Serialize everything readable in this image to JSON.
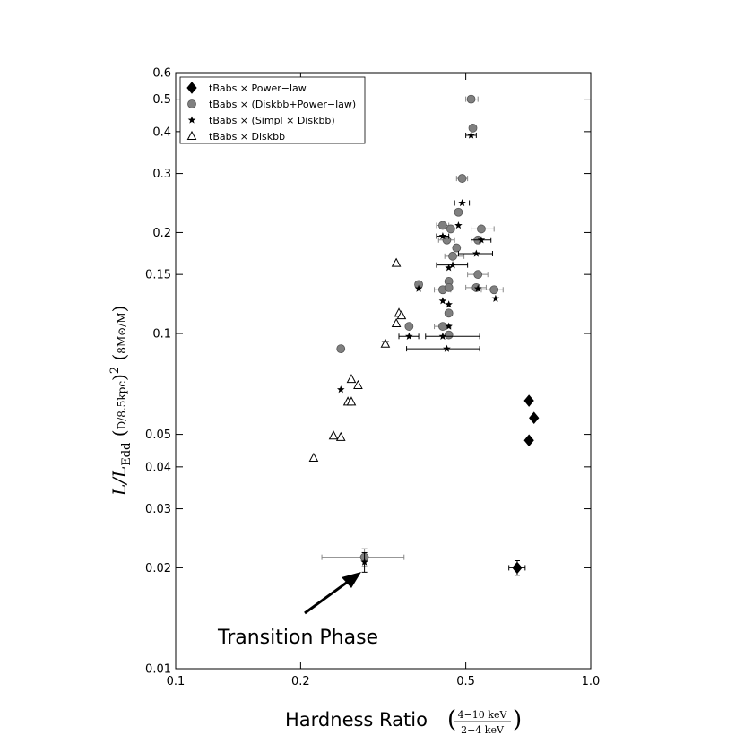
{
  "chart_data": {
    "type": "scatter",
    "title": "",
    "xlabel": "Hardness Ratio",
    "xlabel_fraction": {
      "numerator": "4−10 keV",
      "denominator": "2−4 keV"
    },
    "ylabel": "L/L_Edd (D/8.5kpc)^2 (8M⊙/M)",
    "x_scale": "log",
    "y_scale": "log",
    "xlim": [
      0.1,
      1.0
    ],
    "ylim": [
      0.01,
      0.6
    ],
    "x_ticks": [
      {
        "value": 0.1,
        "label": "0.1"
      },
      {
        "value": 0.2,
        "label": "0.2"
      },
      {
        "value": 0.5,
        "label": "0.5"
      },
      {
        "value": 1.0,
        "label": "1.0"
      }
    ],
    "y_ticks": [
      {
        "value": 0.01,
        "label": "0.01"
      },
      {
        "value": 0.02,
        "label": "0.02"
      },
      {
        "value": 0.03,
        "label": "0.03"
      },
      {
        "value": 0.04,
        "label": "0.04"
      },
      {
        "value": 0.05,
        "label": "0.05"
      },
      {
        "value": 0.1,
        "label": "0.1"
      },
      {
        "value": 0.15,
        "label": "0.15"
      },
      {
        "value": 0.2,
        "label": "0.2"
      },
      {
        "value": 0.3,
        "label": "0.3"
      },
      {
        "value": 0.4,
        "label": "0.4"
      },
      {
        "value": 0.5,
        "label": "0.5"
      },
      {
        "value": 0.6,
        "label": "0.6"
      }
    ],
    "grid": false,
    "legend_position": "top-left",
    "series": [
      {
        "name": "tBabs × Power−law",
        "marker": "diamond",
        "color": "#000000",
        "points": [
          {
            "x": 0.71,
            "y": 0.063
          },
          {
            "x": 0.73,
            "y": 0.056
          },
          {
            "x": 0.71,
            "y": 0.048
          },
          {
            "x": 0.665,
            "y": 0.02,
            "xerr": [
              0.03,
              0.03
            ],
            "yerr": [
              0.001,
              0.001
            ]
          }
        ]
      },
      {
        "name": "tBabs × (Diskbb+Power−law)",
        "marker": "circle",
        "color": "#808080",
        "points": [
          {
            "x": 0.515,
            "y": 0.5,
            "xerr": [
              0.015,
              0.02
            ]
          },
          {
            "x": 0.52,
            "y": 0.41
          },
          {
            "x": 0.49,
            "y": 0.29,
            "xerr": [
              0.015,
              0.015
            ]
          },
          {
            "x": 0.48,
            "y": 0.23
          },
          {
            "x": 0.44,
            "y": 0.21,
            "xerr": [
              0.015,
              0.015
            ]
          },
          {
            "x": 0.46,
            "y": 0.205
          },
          {
            "x": 0.545,
            "y": 0.205,
            "xerr": [
              0.03,
              0.04
            ]
          },
          {
            "x": 0.535,
            "y": 0.19
          },
          {
            "x": 0.45,
            "y": 0.19,
            "xerr": [
              0.02,
              0.02
            ]
          },
          {
            "x": 0.475,
            "y": 0.18
          },
          {
            "x": 0.465,
            "y": 0.17,
            "xerr": [
              0.02,
              0.03
            ]
          },
          {
            "x": 0.535,
            "y": 0.15,
            "xerr": [
              0.03,
              0.03
            ]
          },
          {
            "x": 0.455,
            "y": 0.143
          },
          {
            "x": 0.385,
            "y": 0.14
          },
          {
            "x": 0.44,
            "y": 0.135,
            "xerr": [
              0.02,
              0.02
            ]
          },
          {
            "x": 0.455,
            "y": 0.137
          },
          {
            "x": 0.53,
            "y": 0.137,
            "xerr": [
              0.03,
              0.03
            ]
          },
          {
            "x": 0.585,
            "y": 0.135,
            "xerr": [
              0.04,
              0.03
            ]
          },
          {
            "x": 0.455,
            "y": 0.115
          },
          {
            "x": 0.365,
            "y": 0.105
          },
          {
            "x": 0.44,
            "y": 0.105,
            "xerr": [
              0.02,
              0.02
            ]
          },
          {
            "x": 0.455,
            "y": 0.099
          },
          {
            "x": 0.25,
            "y": 0.09
          },
          {
            "x": 0.285,
            "y": 0.0215,
            "xerr": [
              0.06,
              0.07
            ],
            "yerr": [
              0.0013,
              0.0013
            ]
          }
        ]
      },
      {
        "name": "tBabs × (Simpl × Diskbb)",
        "marker": "star",
        "color": "#000000",
        "points": [
          {
            "x": 0.515,
            "y": 0.39,
            "xerr": [
              0.015,
              0.015
            ]
          },
          {
            "x": 0.49,
            "y": 0.245,
            "xerr": [
              0.02,
              0.02
            ]
          },
          {
            "x": 0.48,
            "y": 0.21
          },
          {
            "x": 0.44,
            "y": 0.195,
            "xerr": [
              0.015,
              0.015
            ]
          },
          {
            "x": 0.545,
            "y": 0.19,
            "xerr": [
              0.03,
              0.03
            ]
          },
          {
            "x": 0.53,
            "y": 0.173,
            "xerr": [
              0.05,
              0.05
            ]
          },
          {
            "x": 0.465,
            "y": 0.16,
            "xerr": [
              0.04,
              0.04
            ]
          },
          {
            "x": 0.455,
            "y": 0.157
          },
          {
            "x": 0.385,
            "y": 0.136
          },
          {
            "x": 0.535,
            "y": 0.136
          },
          {
            "x": 0.44,
            "y": 0.125
          },
          {
            "x": 0.59,
            "y": 0.127
          },
          {
            "x": 0.455,
            "y": 0.122
          },
          {
            "x": 0.455,
            "y": 0.105
          },
          {
            "x": 0.365,
            "y": 0.098,
            "xerr": [
              0.02,
              0.02
            ]
          },
          {
            "x": 0.44,
            "y": 0.098,
            "xerr": [
              0.04,
              0.1
            ]
          },
          {
            "x": 0.45,
            "y": 0.09,
            "xerr": [
              0.09,
              0.09
            ]
          },
          {
            "x": 0.32,
            "y": 0.094
          },
          {
            "x": 0.25,
            "y": 0.068
          },
          {
            "x": 0.285,
            "y": 0.0208,
            "yerr": [
              0.0014,
              0.0014
            ]
          }
        ]
      },
      {
        "name": "tBabs × Diskbb",
        "marker": "triangle-open",
        "color": "#000000",
        "points": [
          {
            "x": 0.34,
            "y": 0.162
          },
          {
            "x": 0.345,
            "y": 0.115
          },
          {
            "x": 0.35,
            "y": 0.113
          },
          {
            "x": 0.34,
            "y": 0.107
          },
          {
            "x": 0.32,
            "y": 0.093
          },
          {
            "x": 0.265,
            "y": 0.073
          },
          {
            "x": 0.275,
            "y": 0.07
          },
          {
            "x": 0.26,
            "y": 0.0625
          },
          {
            "x": 0.265,
            "y": 0.0625
          },
          {
            "x": 0.24,
            "y": 0.0495
          },
          {
            "x": 0.25,
            "y": 0.049
          },
          {
            "x": 0.215,
            "y": 0.0425
          }
        ]
      }
    ],
    "annotations": [
      {
        "text": "Transition Phase",
        "arrow_to": {
          "x": 0.285,
          "y": 0.0205
        }
      }
    ]
  }
}
